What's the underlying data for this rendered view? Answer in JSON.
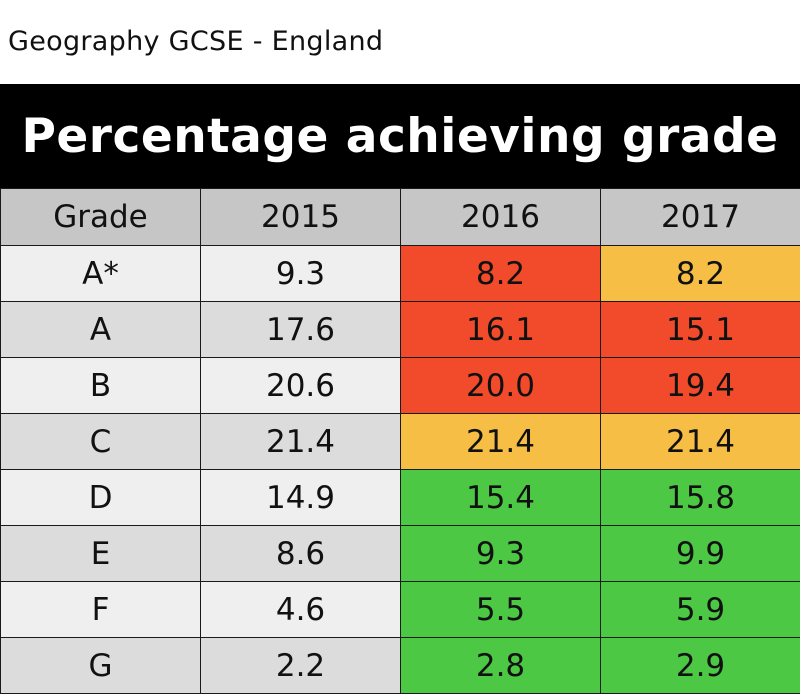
{
  "subtitle": "Geography GCSE - England",
  "colors": {
    "header_bg": "#c6c6c6",
    "row_light": "#efefef",
    "row_dark": "#dcdcdc",
    "red": "#f24b2c",
    "amber": "#f7be45",
    "green": "#4dc845"
  },
  "chart_data": {
    "type": "table",
    "title": "Percentage achieving grade",
    "columns": [
      "Grade",
      "2015",
      "2016",
      "2017"
    ],
    "rows": [
      {
        "grade": "A*",
        "values": [
          "9.3",
          "8.2",
          "8.2"
        ],
        "status": [
          "none",
          "red",
          "amber"
        ]
      },
      {
        "grade": "A",
        "values": [
          "17.6",
          "16.1",
          "15.1"
        ],
        "status": [
          "none",
          "red",
          "red"
        ]
      },
      {
        "grade": "B",
        "values": [
          "20.6",
          "20.0",
          "19.4"
        ],
        "status": [
          "none",
          "red",
          "red"
        ]
      },
      {
        "grade": "C",
        "values": [
          "21.4",
          "21.4",
          "21.4"
        ],
        "status": [
          "none",
          "amber",
          "amber"
        ]
      },
      {
        "grade": "D",
        "values": [
          "14.9",
          "15.4",
          "15.8"
        ],
        "status": [
          "none",
          "green",
          "green"
        ]
      },
      {
        "grade": "E",
        "values": [
          "8.6",
          "9.3",
          "9.9"
        ],
        "status": [
          "none",
          "green",
          "green"
        ]
      },
      {
        "grade": "F",
        "values": [
          "4.6",
          "5.5",
          "5.9"
        ],
        "status": [
          "none",
          "green",
          "green"
        ]
      },
      {
        "grade": "G",
        "values": [
          "2.2",
          "2.8",
          "2.9"
        ],
        "status": [
          "none",
          "green",
          "green"
        ]
      }
    ]
  }
}
